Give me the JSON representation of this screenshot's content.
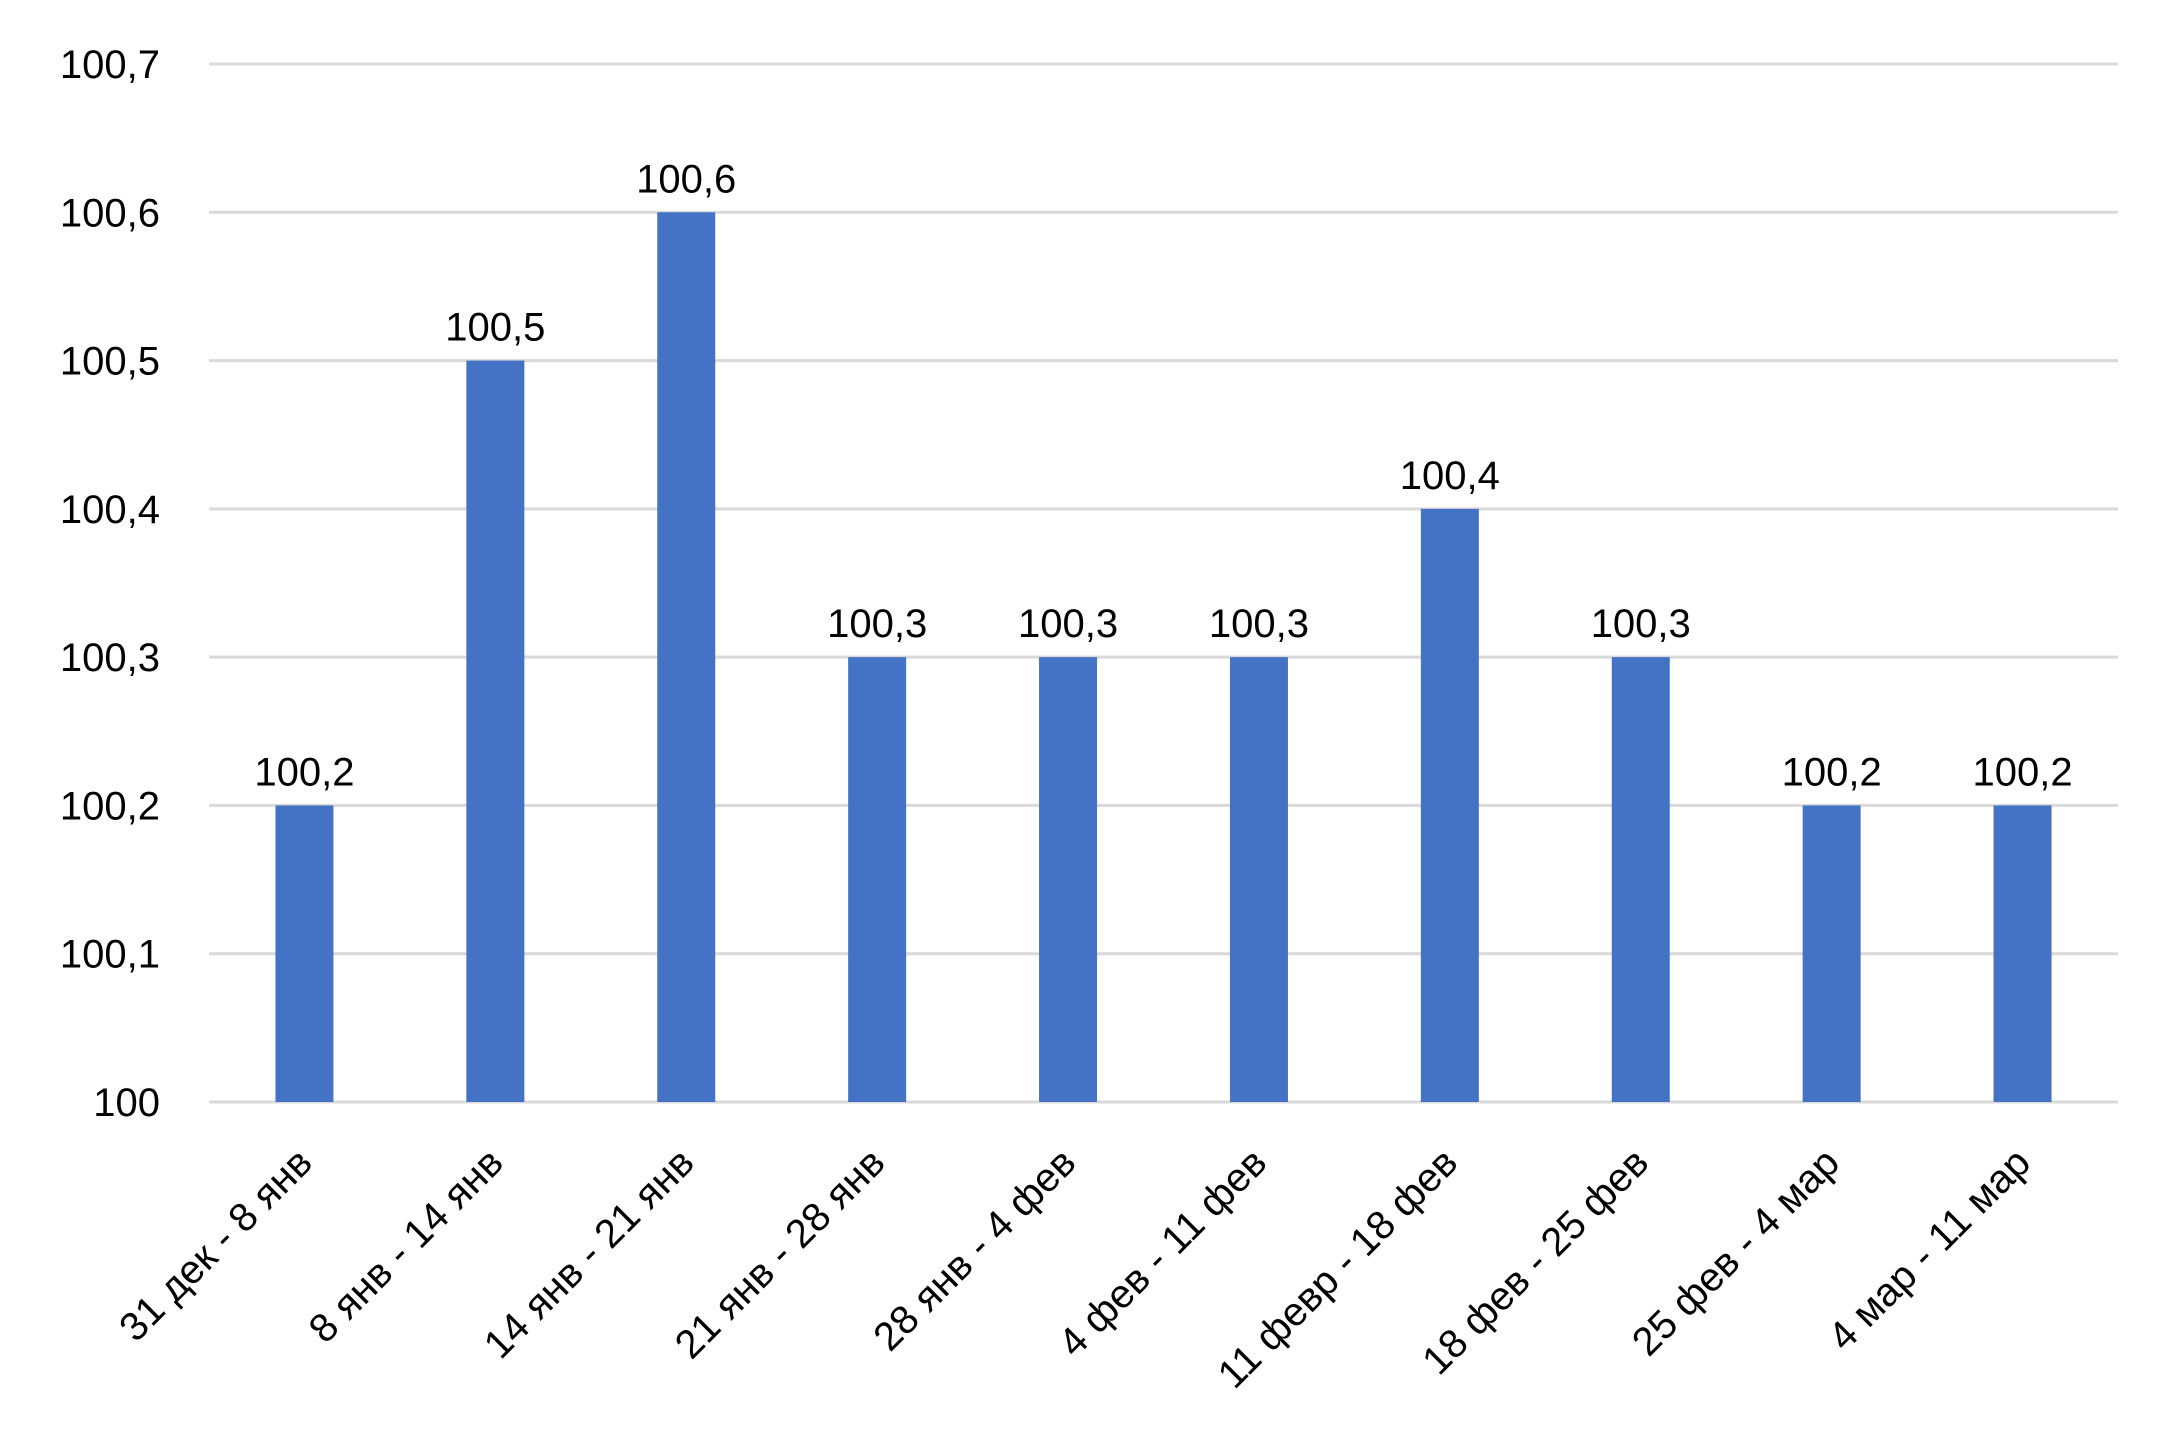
{
  "chart_data": {
    "type": "bar",
    "title": "",
    "xlabel": "",
    "ylabel": "",
    "categories": [
      "31 дек - 8 янв",
      "8 янв - 14 янв",
      "14 янв - 21 янв",
      "21 янв - 28 янв",
      "28 янв - 4 фев",
      "4 фев - 11 фев",
      "11 февр - 18 фев",
      "18 фев - 25 фев",
      "25 фев - 4 мар",
      "4 мар - 11 мар"
    ],
    "values": [
      100.2,
      100.5,
      100.6,
      100.3,
      100.3,
      100.3,
      100.4,
      100.3,
      100.2,
      100.2
    ],
    "data_labels": [
      "100,2",
      "100,5",
      "100,6",
      "100,3",
      "100,3",
      "100,3",
      "100,4",
      "100,3",
      "100,2",
      "100,2"
    ],
    "ylim": [
      100,
      100.7
    ],
    "y_ticks": [
      100,
      100.1,
      100.2,
      100.3,
      100.4,
      100.5,
      100.6,
      100.7
    ],
    "y_tick_labels": [
      "100",
      "100,1",
      "100,2",
      "100,3",
      "100,4",
      "100,5",
      "100,6",
      "100,7"
    ],
    "grid": true,
    "legend": "none",
    "bar_color": "#4472C4",
    "grid_color": "#D9D9D9"
  }
}
